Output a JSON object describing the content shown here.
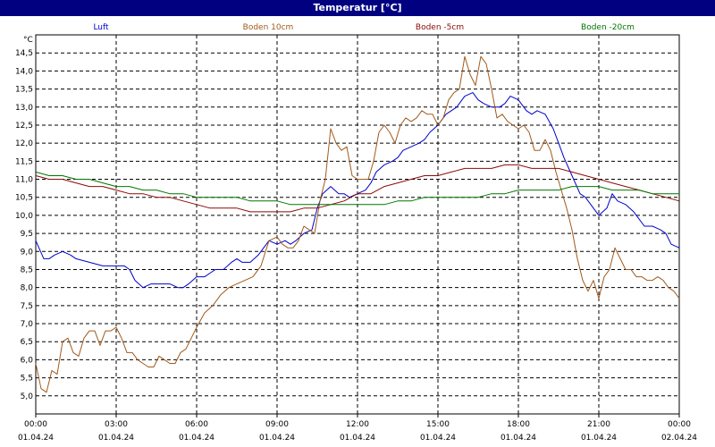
{
  "chart_data": {
    "type": "line",
    "title": "Temperatur [°C]",
    "yunit": "°C",
    "ylim": [
      4.5,
      15.0
    ],
    "yticks": [
      5.0,
      5.5,
      6.0,
      6.5,
      7.0,
      7.5,
      8.0,
      8.5,
      9.0,
      9.5,
      10.0,
      10.5,
      11.0,
      11.5,
      12.0,
      12.5,
      13.0,
      13.5,
      14.0,
      14.5
    ],
    "ytick_labels": [
      "5,0",
      "5,5",
      "6,0",
      "6,5",
      "7,0",
      "7,5",
      "8,0",
      "8,5",
      "9,0",
      "9,5",
      "10,0",
      "10,5",
      "11,0",
      "11,5",
      "12,0",
      "12,5",
      "13,0",
      "13,5",
      "14,0",
      "14,5"
    ],
    "xlim": [
      0,
      24
    ],
    "xticks": [
      0,
      3,
      6,
      9,
      12,
      15,
      18,
      21,
      24
    ],
    "xtick_times": [
      "00:00",
      "03:00",
      "06:00",
      "09:00",
      "12:00",
      "15:00",
      "18:00",
      "21:00",
      "00:00"
    ],
    "xtick_dates": [
      "01.04.24",
      "01.04.24",
      "01.04.24",
      "01.04.24",
      "01.04.24",
      "01.04.24",
      "01.04.24",
      "01.04.24",
      "02.04.24"
    ],
    "grid": true,
    "legend_position": "top",
    "series": [
      {
        "name": "Luft",
        "color": "#0000cc",
        "x": [
          0,
          0.3,
          0.5,
          0.7,
          1,
          1.3,
          1.5,
          2,
          2.5,
          3,
          3.3,
          3.5,
          3.7,
          4,
          4.3,
          4.5,
          4.7,
          5,
          5.3,
          5.5,
          5.7,
          6,
          6.3,
          6.5,
          6.7,
          7,
          7.3,
          7.5,
          7.7,
          8,
          8.3,
          8.5,
          8.7,
          9,
          9.3,
          9.5,
          9.7,
          10,
          10.3,
          10.5,
          10.7,
          11,
          11.3,
          11.5,
          11.7,
          12,
          12.3,
          12.5,
          12.7,
          13,
          13.3,
          13.5,
          13.7,
          14,
          14.3,
          14.5,
          14.7,
          15,
          15.3,
          15.5,
          15.7,
          16,
          16.3,
          16.5,
          16.7,
          17,
          17.3,
          17.5,
          17.7,
          18,
          18.3,
          18.5,
          18.7,
          19,
          19.3,
          19.5,
          19.7,
          20,
          20.3,
          20.5,
          20.7,
          21,
          21.3,
          21.5,
          21.7,
          22,
          22.3,
          22.5,
          22.7,
          23,
          23.3,
          23.5,
          23.7,
          24
        ],
        "values": [
          9.3,
          8.8,
          8.8,
          8.9,
          9.0,
          8.9,
          8.8,
          8.7,
          8.6,
          8.6,
          8.6,
          8.5,
          8.2,
          8.0,
          8.1,
          8.1,
          8.1,
          8.1,
          8.0,
          8.0,
          8.1,
          8.3,
          8.3,
          8.4,
          8.5,
          8.5,
          8.7,
          8.8,
          8.7,
          8.7,
          8.9,
          9.1,
          9.3,
          9.2,
          9.3,
          9.2,
          9.3,
          9.5,
          9.6,
          10.2,
          10.6,
          10.8,
          10.6,
          10.6,
          10.5,
          10.6,
          10.7,
          10.9,
          11.2,
          11.4,
          11.5,
          11.6,
          11.8,
          11.9,
          12.0,
          12.1,
          12.3,
          12.5,
          12.8,
          12.9,
          13.0,
          13.3,
          13.4,
          13.2,
          13.1,
          13.0,
          13.0,
          13.1,
          13.3,
          13.2,
          12.9,
          12.8,
          12.9,
          12.8,
          12.4,
          12.0,
          11.6,
          11.1,
          10.6,
          10.5,
          10.3,
          10.0,
          10.2,
          10.6,
          10.4,
          10.3,
          10.1,
          9.9,
          9.7,
          9.7,
          9.6,
          9.5,
          9.2,
          9.1
        ],
        "line_width": 1
      },
      {
        "name": "Boden 10cm",
        "color": "#a05a1e",
        "x": [
          0,
          0.2,
          0.4,
          0.6,
          0.8,
          1,
          1.2,
          1.4,
          1.6,
          1.8,
          2,
          2.2,
          2.4,
          2.6,
          2.8,
          3,
          3.2,
          3.4,
          3.6,
          3.8,
          4,
          4.2,
          4.4,
          4.6,
          4.8,
          5,
          5.2,
          5.4,
          5.6,
          5.8,
          6,
          6.3,
          6.6,
          6.9,
          7.2,
          7.5,
          7.8,
          8.1,
          8.4,
          8.7,
          9,
          9.2,
          9.4,
          9.6,
          9.8,
          10,
          10.2,
          10.4,
          10.6,
          10.8,
          11,
          11.2,
          11.4,
          11.6,
          11.8,
          12,
          12.2,
          12.4,
          12.6,
          12.8,
          13,
          13.2,
          13.4,
          13.6,
          13.8,
          14,
          14.2,
          14.4,
          14.6,
          14.8,
          15,
          15.2,
          15.4,
          15.6,
          15.8,
          16,
          16.2,
          16.4,
          16.6,
          16.8,
          17,
          17.2,
          17.4,
          17.6,
          17.8,
          18,
          18.2,
          18.4,
          18.6,
          18.8,
          19,
          19.2,
          19.4,
          19.6,
          19.8,
          20,
          20.2,
          20.4,
          20.6,
          20.8,
          21,
          21.2,
          21.4,
          21.6,
          21.8,
          22,
          22.2,
          22.4,
          22.6,
          22.8,
          23,
          23.2,
          23.4,
          23.6,
          23.8,
          24
        ],
        "values": [
          5.9,
          5.2,
          5.1,
          5.7,
          5.6,
          6.5,
          6.6,
          6.2,
          6.1,
          6.6,
          6.8,
          6.8,
          6.4,
          6.8,
          6.8,
          6.9,
          6.6,
          6.2,
          6.2,
          6.0,
          5.9,
          5.8,
          5.8,
          6.1,
          6.0,
          5.9,
          5.9,
          6.2,
          6.3,
          6.6,
          6.9,
          7.3,
          7.5,
          7.8,
          8.0,
          8.1,
          8.2,
          8.3,
          8.6,
          9.3,
          9.4,
          9.2,
          9.1,
          9.1,
          9.3,
          9.7,
          9.6,
          9.5,
          10.4,
          11.0,
          12.4,
          12.0,
          11.8,
          11.9,
          11.1,
          11.0,
          11.0,
          11.0,
          11.5,
          12.3,
          12.5,
          12.3,
          12.0,
          12.5,
          12.7,
          12.6,
          12.7,
          12.9,
          12.8,
          12.8,
          12.5,
          12.7,
          13.2,
          13.4,
          13.5,
          14.4,
          13.9,
          13.6,
          14.4,
          14.2,
          13.5,
          12.7,
          12.8,
          12.6,
          12.5,
          12.4,
          12.5,
          12.3,
          11.8,
          11.8,
          12.1,
          11.8,
          11.2,
          10.7,
          10.2,
          9.6,
          8.8,
          8.2,
          7.9,
          8.2,
          7.7,
          8.3,
          8.5,
          9.1,
          8.8,
          8.5,
          8.5,
          8.3,
          8.3,
          8.2,
          8.2,
          8.3,
          8.2,
          8.0,
          7.9,
          7.7
        ],
        "line_width": 1
      },
      {
        "name": "Boden -5cm",
        "color": "#8b0a0a",
        "x": [
          0,
          0.5,
          1,
          1.5,
          2,
          2.5,
          3,
          3.5,
          4,
          4.5,
          5,
          5.5,
          6,
          6.5,
          7,
          7.5,
          8,
          8.5,
          9,
          9.5,
          10,
          10.5,
          11,
          11.5,
          12,
          12.5,
          13,
          13.5,
          14,
          14.5,
          15,
          15.5,
          16,
          16.5,
          17,
          17.5,
          18,
          18.5,
          19,
          19.5,
          20,
          20.5,
          21,
          21.5,
          22,
          22.5,
          23,
          23.5,
          24
        ],
        "values": [
          11.1,
          11.0,
          11.0,
          10.9,
          10.8,
          10.8,
          10.7,
          10.6,
          10.6,
          10.5,
          10.5,
          10.4,
          10.3,
          10.2,
          10.2,
          10.2,
          10.1,
          10.1,
          10.1,
          10.1,
          10.2,
          10.2,
          10.3,
          10.4,
          10.6,
          10.6,
          10.8,
          10.9,
          11.0,
          11.1,
          11.1,
          11.2,
          11.3,
          11.3,
          11.3,
          11.4,
          11.4,
          11.3,
          11.3,
          11.3,
          11.2,
          11.1,
          11.0,
          10.9,
          10.8,
          10.7,
          10.6,
          10.5,
          10.4
        ],
        "line_width": 1
      },
      {
        "name": "Boden -20cm",
        "color": "#007700",
        "x": [
          0,
          0.5,
          1,
          1.5,
          2,
          2.5,
          3,
          3.5,
          4,
          4.5,
          5,
          5.5,
          6,
          6.5,
          7,
          7.5,
          8,
          8.5,
          9,
          9.5,
          10,
          10.5,
          11,
          11.5,
          12,
          12.5,
          13,
          13.5,
          14,
          14.5,
          15,
          15.5,
          16,
          16.5,
          17,
          17.5,
          18,
          18.5,
          19,
          19.5,
          20,
          20.5,
          21,
          21.5,
          22,
          22.5,
          23,
          23.5,
          24
        ],
        "values": [
          11.2,
          11.1,
          11.1,
          11.0,
          11.0,
          10.9,
          10.8,
          10.8,
          10.7,
          10.7,
          10.6,
          10.6,
          10.5,
          10.5,
          10.5,
          10.5,
          10.4,
          10.4,
          10.4,
          10.3,
          10.3,
          10.3,
          10.3,
          10.3,
          10.3,
          10.3,
          10.3,
          10.4,
          10.4,
          10.5,
          10.5,
          10.5,
          10.5,
          10.5,
          10.6,
          10.6,
          10.7,
          10.7,
          10.7,
          10.7,
          10.8,
          10.8,
          10.8,
          10.7,
          10.7,
          10.7,
          10.6,
          10.6,
          10.6
        ],
        "line_width": 1
      }
    ]
  }
}
